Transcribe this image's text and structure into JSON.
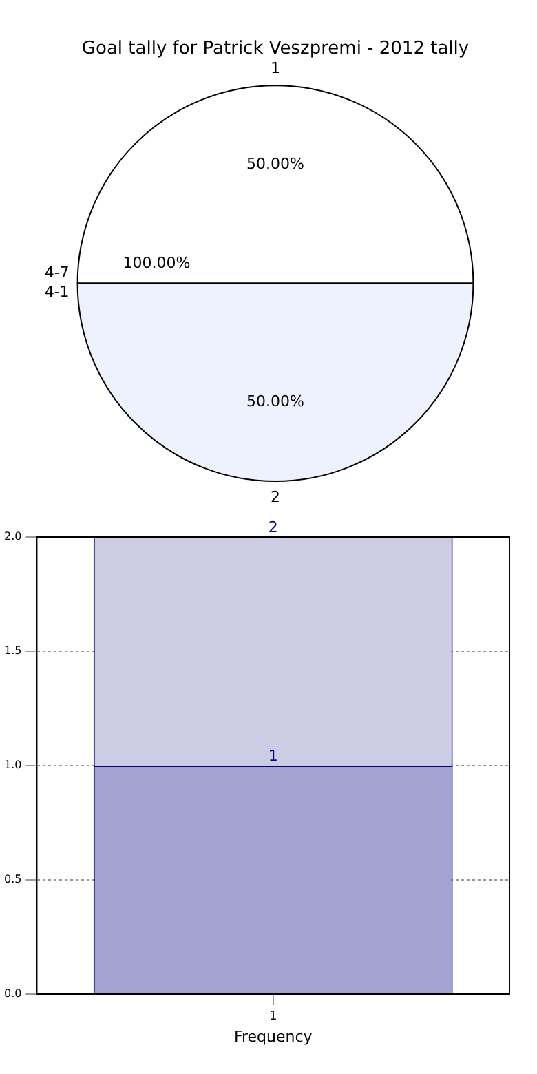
{
  "chart_data": [
    {
      "type": "pie",
      "title": "Goal tally for Patrick Veszpremi - 2012 tally",
      "categories": [
        "1",
        "2"
      ],
      "values": [
        50,
        50
      ],
      "colors": [
        "#ffffff",
        "#eef2fc"
      ],
      "value_labels": [
        "50.00%",
        "50.00%"
      ],
      "annotations": [
        "4-7",
        "4-1",
        "100.00%"
      ]
    },
    {
      "type": "bar",
      "categories": [
        "1"
      ],
      "stacked": true,
      "xlabel": "Frequency",
      "ylim": [
        0,
        2
      ],
      "yticks": [
        {
          "value": 0,
          "label": "0.0"
        },
        {
          "value": 0.5,
          "label": "0.5"
        },
        {
          "value": 1,
          "label": "1.0"
        },
        {
          "value": 1.5,
          "label": "1.5"
        },
        {
          "value": 2,
          "label": "2.0"
        }
      ],
      "grid": true,
      "totals": [
        "2"
      ],
      "series": [
        {
          "color": "#a3a3d0",
          "values": [
            1
          ],
          "value_labels": [
            "1"
          ]
        },
        {
          "color": "#cccce4",
          "values": [
            1
          ]
        }
      ]
    }
  ]
}
